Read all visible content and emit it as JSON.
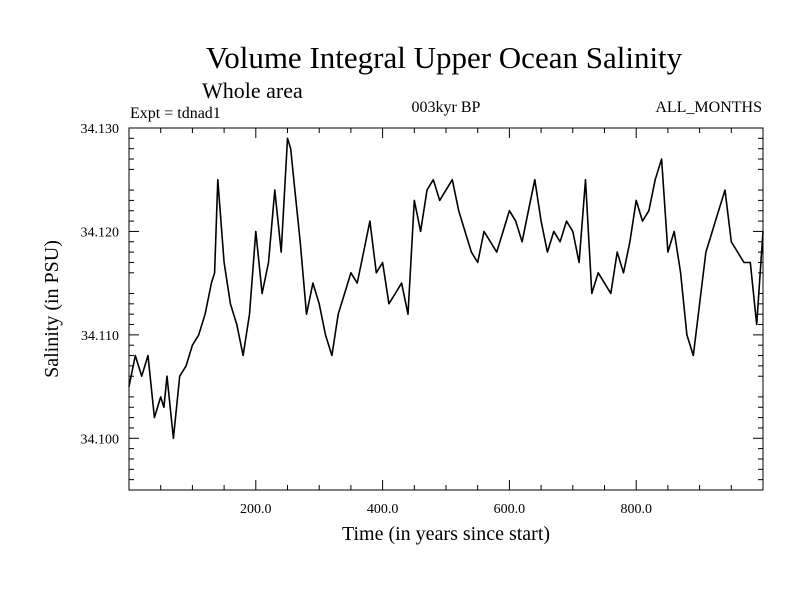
{
  "chart_data": {
    "type": "line",
    "title": "Volume Integral Upper Ocean Salinity",
    "subtitle": "Whole area",
    "experiment_label": "Expt = tdnad1",
    "period_label": "003kyr BP",
    "months_label": "ALL_MONTHS",
    "xlabel": "Time (in years since start)",
    "ylabel": "Salinity (in PSU)",
    "xlim": [
      0,
      1000
    ],
    "ylim": [
      34.095,
      34.13
    ],
    "x_ticks": [
      200,
      400,
      600,
      800
    ],
    "x_tick_labels": [
      "200.0",
      "400.0",
      "600.0",
      "800.0"
    ],
    "y_ticks": [
      34.1,
      34.11,
      34.12,
      34.13
    ],
    "y_tick_labels": [
      "34.100",
      "34.110",
      "34.120",
      "34.130"
    ],
    "grid": false,
    "series": [
      {
        "name": "Salinity",
        "color": "#000000",
        "x": [
          0,
          10,
          20,
          30,
          40,
          50,
          55,
          60,
          70,
          80,
          90,
          100,
          110,
          120,
          130,
          135,
          140,
          150,
          160,
          170,
          180,
          190,
          200,
          210,
          220,
          230,
          240,
          250,
          255,
          260,
          270,
          280,
          290,
          300,
          310,
          320,
          330,
          340,
          350,
          360,
          370,
          380,
          390,
          400,
          410,
          420,
          430,
          440,
          450,
          460,
          470,
          480,
          490,
          500,
          510,
          520,
          530,
          540,
          550,
          560,
          570,
          580,
          590,
          600,
          610,
          620,
          630,
          640,
          650,
          660,
          670,
          680,
          690,
          700,
          710,
          720,
          730,
          740,
          750,
          760,
          770,
          780,
          790,
          800,
          810,
          820,
          830,
          840,
          850,
          860,
          870,
          880,
          890,
          900,
          910,
          920,
          930,
          940,
          950,
          960,
          970,
          980,
          990,
          1000
        ],
        "y": [
          34.105,
          34.108,
          34.106,
          34.108,
          34.102,
          34.104,
          34.103,
          34.106,
          34.1,
          34.106,
          34.107,
          34.109,
          34.11,
          34.112,
          34.115,
          34.116,
          34.125,
          34.117,
          34.113,
          34.111,
          34.108,
          34.112,
          34.12,
          34.114,
          34.117,
          34.124,
          34.118,
          34.129,
          34.128,
          34.125,
          34.119,
          34.112,
          34.115,
          34.113,
          34.11,
          34.108,
          34.112,
          34.114,
          34.116,
          34.115,
          34.118,
          34.121,
          34.116,
          34.117,
          34.113,
          34.114,
          34.115,
          34.112,
          34.123,
          34.12,
          34.124,
          34.125,
          34.123,
          34.124,
          34.125,
          34.122,
          34.12,
          34.118,
          34.117,
          34.12,
          34.119,
          34.118,
          34.12,
          34.122,
          34.121,
          34.119,
          34.122,
          34.125,
          34.121,
          34.118,
          34.12,
          34.119,
          34.121,
          34.12,
          34.117,
          34.125,
          34.114,
          34.116,
          34.115,
          34.114,
          34.118,
          34.116,
          34.119,
          34.123,
          34.121,
          34.122,
          34.125,
          34.127,
          34.118,
          34.12,
          34.116,
          34.11,
          34.108,
          34.113,
          34.118,
          34.12,
          34.122,
          34.124,
          34.119,
          34.118,
          34.117,
          34.117,
          34.111,
          34.12
        ]
      }
    ]
  }
}
